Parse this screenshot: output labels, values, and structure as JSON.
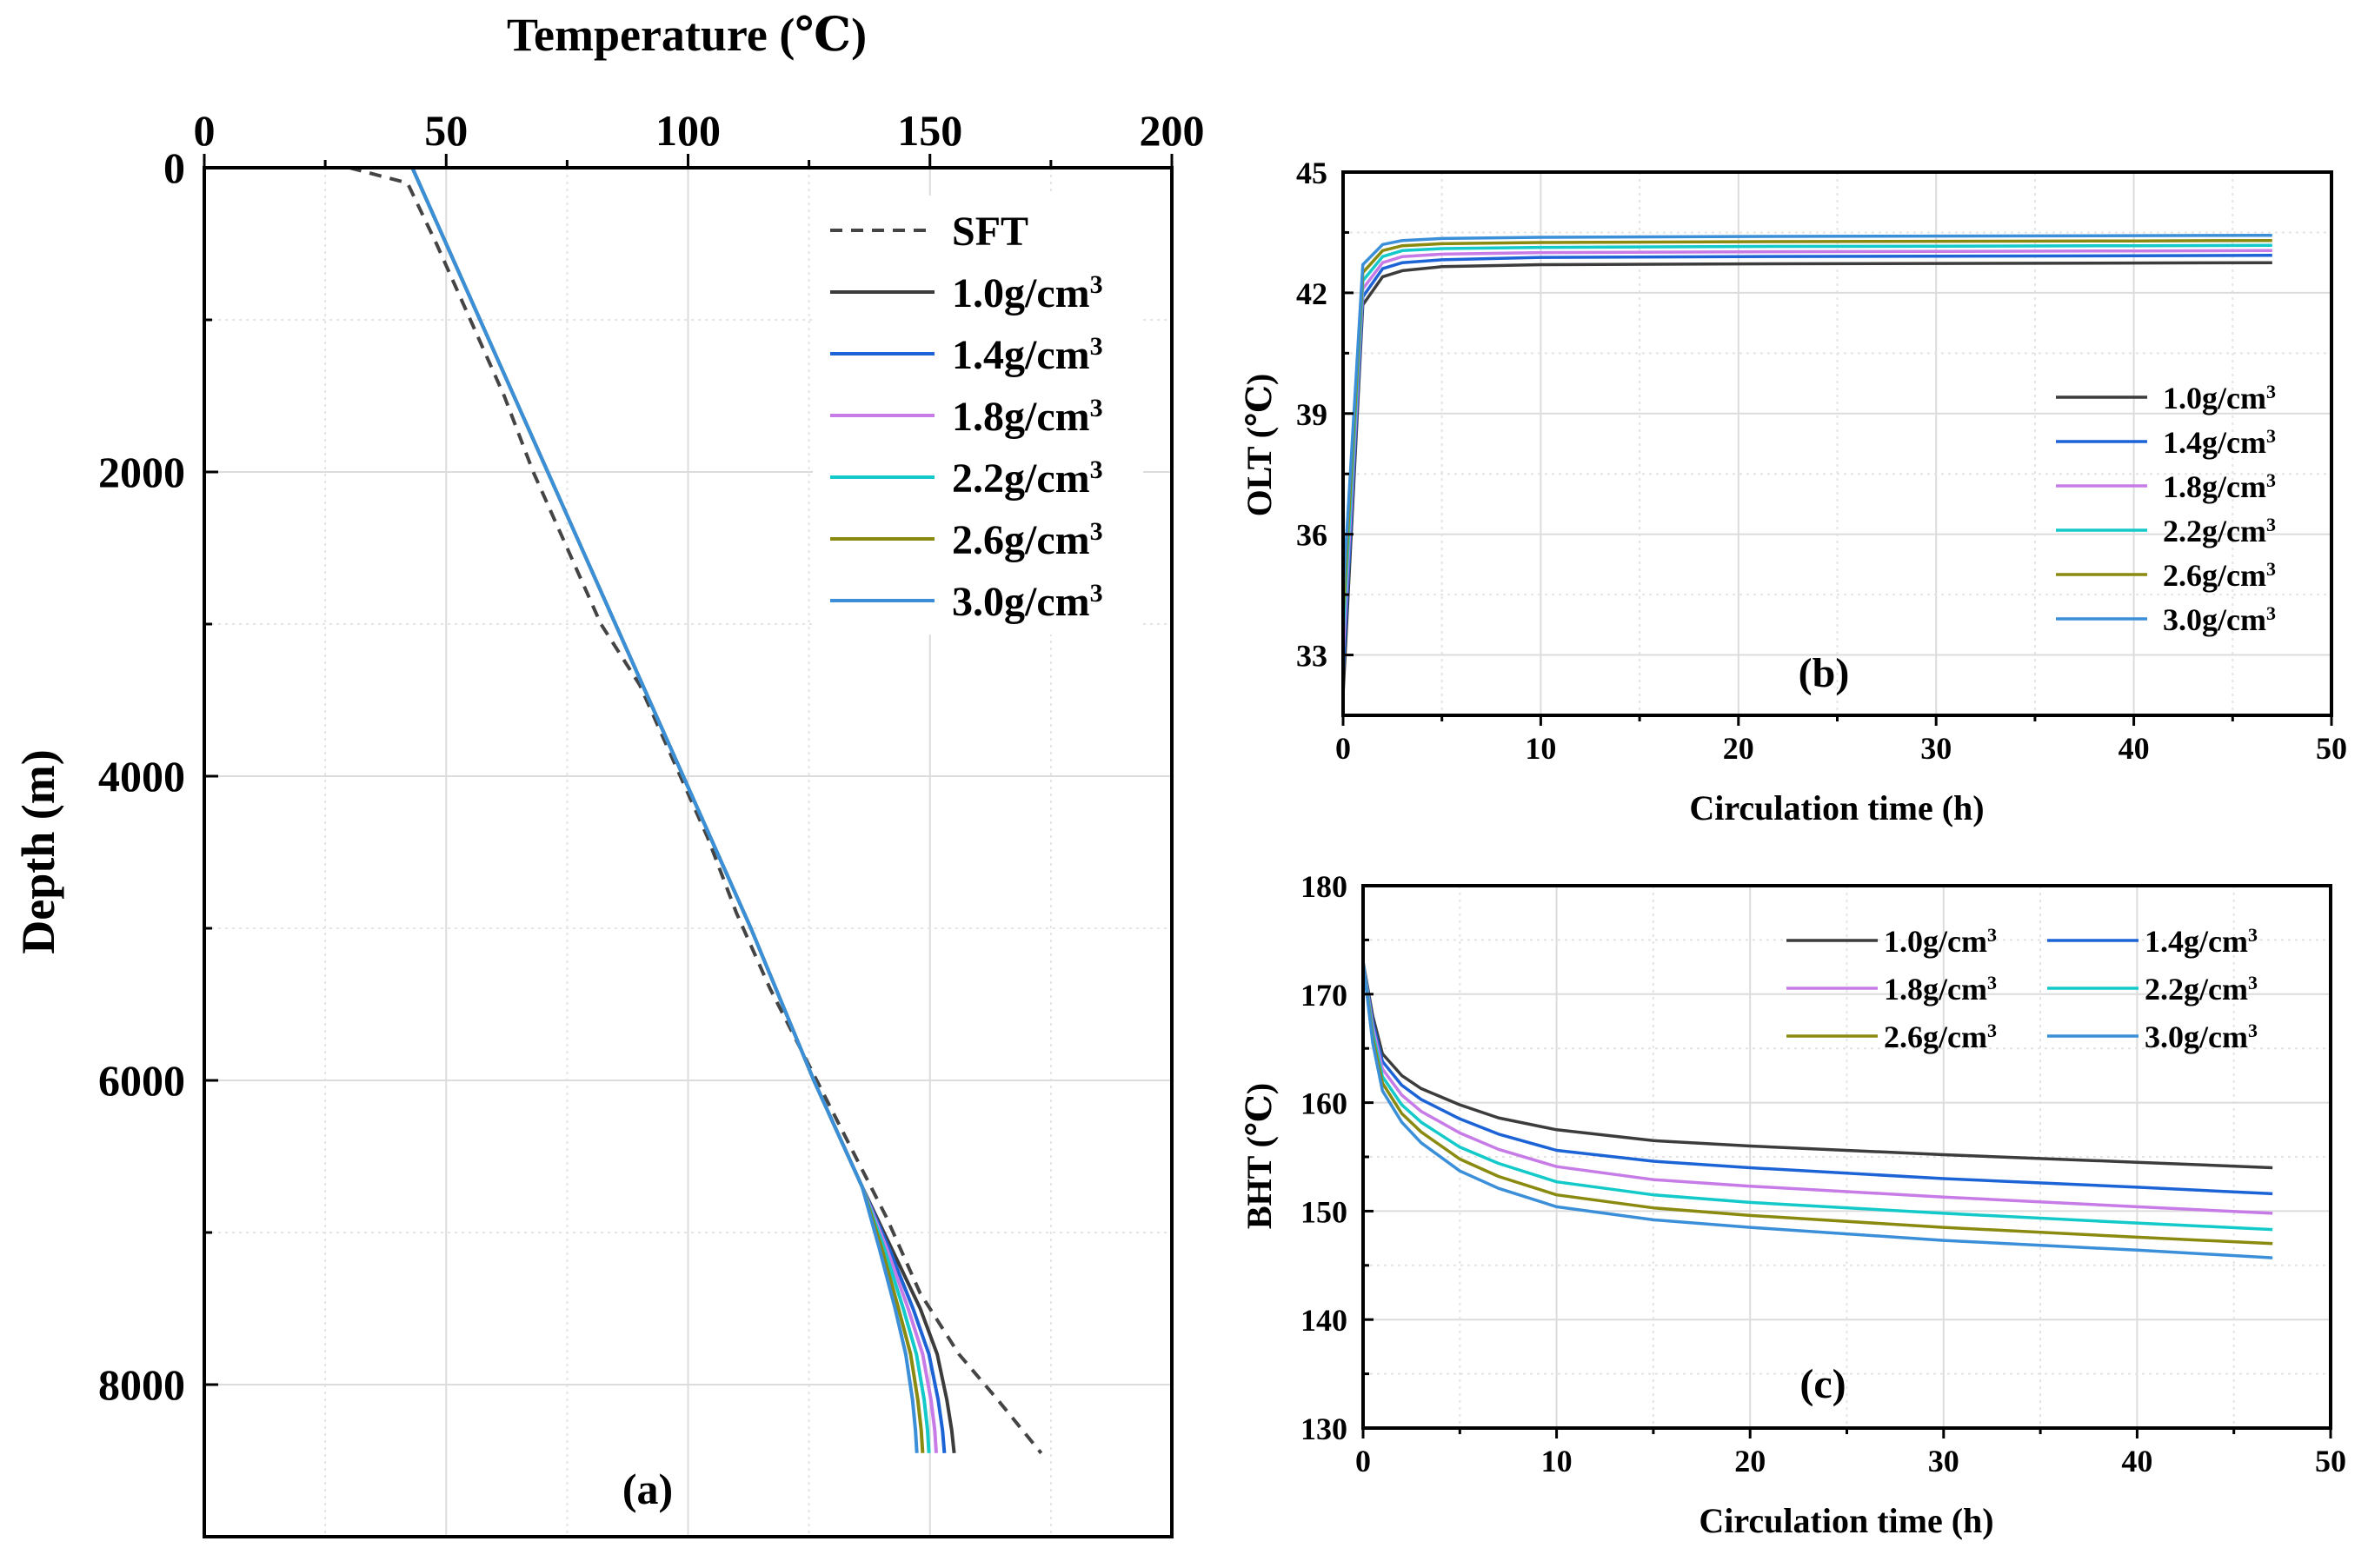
{
  "chart_data": [
    {
      "id": "a",
      "type": "line",
      "panel_label": "(a)",
      "xlabel": "Temperature (℃)",
      "ylabel": "Depth (m)",
      "xlim": [
        0,
        200
      ],
      "ylim": [
        0,
        9000
      ],
      "x_ticks": [
        0,
        50,
        100,
        150,
        200
      ],
      "y_ticks": [
        0,
        2000,
        4000,
        6000,
        8000
      ],
      "y_inverted": true,
      "x_axis_position": "top",
      "grid": true,
      "legend_position": "top-right",
      "series": [
        {
          "name": "SFT",
          "style": "dashed",
          "color": "#444444",
          "x": [
            30,
            42,
            48,
            55,
            62,
            68,
            75,
            82,
            90,
            97,
            104,
            110,
            117,
            125,
            133,
            141,
            148,
            156,
            164,
            173
          ],
          "y": [
            0,
            100,
            500,
            1000,
            1500,
            2000,
            2500,
            3000,
            3400,
            3900,
            4400,
            4900,
            5400,
            5900,
            6400,
            6900,
            7400,
            7800,
            8100,
            8450
          ]
        },
        {
          "name": "1.0g/cm3",
          "color": "#3c3c3c",
          "x": [
            43,
            57,
            71,
            85,
            99,
            113,
            126,
            136,
            142,
            148,
            151.5,
            153.5,
            154.5,
            155
          ],
          "y": [
            0,
            1000,
            2000,
            3000,
            4000,
            5000,
            6000,
            6700,
            7100,
            7500,
            7800,
            8100,
            8300,
            8450
          ]
        },
        {
          "name": "1.4g/cm3",
          "color": "#1c63d6",
          "x": [
            43,
            57,
            71,
            85,
            99,
            113,
            126,
            136,
            141.5,
            146.5,
            149.8,
            151.7,
            152.6,
            153
          ],
          "y": [
            0,
            1000,
            2000,
            3000,
            4000,
            5000,
            6000,
            6700,
            7100,
            7500,
            7800,
            8100,
            8300,
            8450
          ]
        },
        {
          "name": "1.8g/cm3",
          "color": "#c77be6",
          "x": [
            43,
            57,
            71,
            85,
            99,
            113,
            126,
            136,
            141,
            145.5,
            148.5,
            150.2,
            151,
            151.3
          ],
          "y": [
            0,
            1000,
            2000,
            3000,
            4000,
            5000,
            6000,
            6700,
            7100,
            7500,
            7800,
            8100,
            8300,
            8450
          ]
        },
        {
          "name": "2.2g/cm3",
          "color": "#14c9c9",
          "x": [
            43,
            57,
            71,
            85,
            99,
            113,
            126,
            136,
            140.5,
            144.5,
            147.2,
            148.8,
            149.5,
            149.8
          ],
          "y": [
            0,
            1000,
            2000,
            3000,
            4000,
            5000,
            6000,
            6700,
            7100,
            7500,
            7800,
            8100,
            8300,
            8450
          ]
        },
        {
          "name": "2.6g/cm3",
          "color": "#8a8a10",
          "x": [
            43,
            57,
            71,
            85,
            99,
            113,
            126,
            136,
            140,
            143.5,
            146,
            147.5,
            148.2,
            148.5
          ],
          "y": [
            0,
            1000,
            2000,
            3000,
            4000,
            5000,
            6000,
            6700,
            7100,
            7500,
            7800,
            8100,
            8300,
            8450
          ]
        },
        {
          "name": "3.0g/cm3",
          "color": "#3a8fd8",
          "x": [
            43,
            57,
            71,
            85,
            99,
            113,
            126,
            136,
            139.5,
            142.8,
            145,
            146.4,
            147,
            147.3
          ],
          "y": [
            0,
            1000,
            2000,
            3000,
            4000,
            5000,
            6000,
            6700,
            7100,
            7500,
            7800,
            8100,
            8300,
            8450
          ]
        }
      ]
    },
    {
      "id": "b",
      "type": "line",
      "panel_label": "(b)",
      "xlabel": "Circulation time (h)",
      "ylabel": "OLT (℃)",
      "xlim": [
        0,
        50
      ],
      "ylim": [
        31.5,
        45
      ],
      "x_ticks": [
        0,
        10,
        20,
        30,
        40,
        50
      ],
      "y_ticks": [
        33,
        36,
        39,
        42,
        45
      ],
      "grid": true,
      "legend_position": "center-right",
      "series": [
        {
          "name": "1.0g/cm3",
          "color": "#3c3c3c",
          "x": [
            0,
            1,
            2,
            3,
            5,
            10,
            20,
            30,
            40,
            47
          ],
          "y": [
            32,
            41.7,
            42.4,
            42.55,
            42.65,
            42.7,
            42.72,
            42.73,
            42.74,
            42.75
          ]
        },
        {
          "name": "1.4g/cm3",
          "color": "#1c63d6",
          "x": [
            0,
            1,
            2,
            3,
            5,
            10,
            20,
            30,
            40,
            47
          ],
          "y": [
            32.5,
            41.9,
            42.6,
            42.75,
            42.82,
            42.88,
            42.9,
            42.91,
            42.92,
            42.93
          ]
        },
        {
          "name": "1.8g/cm3",
          "color": "#c77be6",
          "x": [
            0,
            1,
            2,
            3,
            5,
            10,
            20,
            30,
            40,
            47
          ],
          "y": [
            33,
            42.1,
            42.75,
            42.9,
            42.96,
            43.0,
            43.02,
            43.03,
            43.04,
            43.05
          ]
        },
        {
          "name": "2.2g/cm3",
          "color": "#14c9c9",
          "x": [
            0,
            1,
            2,
            3,
            5,
            10,
            20,
            30,
            40,
            47
          ],
          "y": [
            33.5,
            42.3,
            42.9,
            43.05,
            43.1,
            43.13,
            43.15,
            43.16,
            43.17,
            43.18
          ]
        },
        {
          "name": "2.6g/cm3",
          "color": "#8a8a10",
          "x": [
            0,
            1,
            2,
            3,
            5,
            10,
            20,
            30,
            40,
            47
          ],
          "y": [
            34,
            42.5,
            43.05,
            43.17,
            43.22,
            43.25,
            43.27,
            43.28,
            43.29,
            43.3
          ]
        },
        {
          "name": "3.0g/cm3",
          "color": "#3a8fd8",
          "x": [
            0,
            1,
            2,
            3,
            5,
            10,
            20,
            30,
            40,
            47
          ],
          "y": [
            34.5,
            42.7,
            43.2,
            43.3,
            43.35,
            43.38,
            43.4,
            43.41,
            43.42,
            43.43
          ]
        }
      ]
    },
    {
      "id": "c",
      "type": "line",
      "panel_label": "(c)",
      "xlabel": "Circulation time (h)",
      "ylabel": "BHT (℃)",
      "xlim": [
        0,
        50
      ],
      "ylim": [
        130,
        180
      ],
      "x_ticks": [
        0,
        10,
        20,
        30,
        40,
        50
      ],
      "y_ticks": [
        130,
        140,
        150,
        160,
        170,
        180
      ],
      "grid": true,
      "legend_position": "top-right",
      "legend_columns": 2,
      "series": [
        {
          "name": "1.0g/cm3",
          "color": "#3c3c3c",
          "x": [
            0,
            0.5,
            1,
            2,
            3,
            5,
            7,
            10,
            15,
            20,
            30,
            40,
            47
          ],
          "y": [
            173,
            168,
            164.5,
            162.5,
            161.3,
            159.8,
            158.6,
            157.5,
            156.5,
            156,
            155.2,
            154.5,
            154
          ]
        },
        {
          "name": "1.4g/cm3",
          "color": "#1c63d6",
          "x": [
            0,
            0.5,
            1,
            2,
            3,
            5,
            7,
            10,
            15,
            20,
            30,
            40,
            47
          ],
          "y": [
            173,
            167.5,
            163.8,
            161.6,
            160.3,
            158.5,
            157.1,
            155.6,
            154.6,
            154,
            153,
            152.2,
            151.6
          ]
        },
        {
          "name": "1.8g/cm3",
          "color": "#c77be6",
          "x": [
            0,
            0.5,
            1,
            2,
            3,
            5,
            7,
            10,
            15,
            20,
            30,
            40,
            47
          ],
          "y": [
            173,
            167,
            163.1,
            160.7,
            159.2,
            157.2,
            155.7,
            154.1,
            152.9,
            152.3,
            151.3,
            150.4,
            149.8
          ]
        },
        {
          "name": "2.2g/cm3",
          "color": "#14c9c9",
          "x": [
            0,
            0.5,
            1,
            2,
            3,
            5,
            7,
            10,
            15,
            20,
            30,
            40,
            47
          ],
          "y": [
            173,
            166.5,
            162.4,
            159.8,
            158.2,
            155.9,
            154.4,
            152.7,
            151.5,
            150.8,
            149.8,
            148.9,
            148.3
          ]
        },
        {
          "name": "2.6g/cm3",
          "color": "#8a8a10",
          "x": [
            0,
            0.5,
            1,
            2,
            3,
            5,
            7,
            10,
            15,
            20,
            30,
            40,
            47
          ],
          "y": [
            173,
            166,
            161.8,
            159,
            157.3,
            154.8,
            153.2,
            151.5,
            150.3,
            149.6,
            148.5,
            147.6,
            147
          ]
        },
        {
          "name": "3.0g/cm3",
          "color": "#3a8fd8",
          "x": [
            0,
            0.5,
            1,
            2,
            3,
            5,
            7,
            10,
            15,
            20,
            30,
            40,
            47
          ],
          "y": [
            173,
            165.5,
            161.1,
            158.2,
            156.3,
            153.7,
            152.1,
            150.4,
            149.2,
            148.5,
            147.3,
            146.4,
            145.7
          ]
        }
      ]
    }
  ]
}
